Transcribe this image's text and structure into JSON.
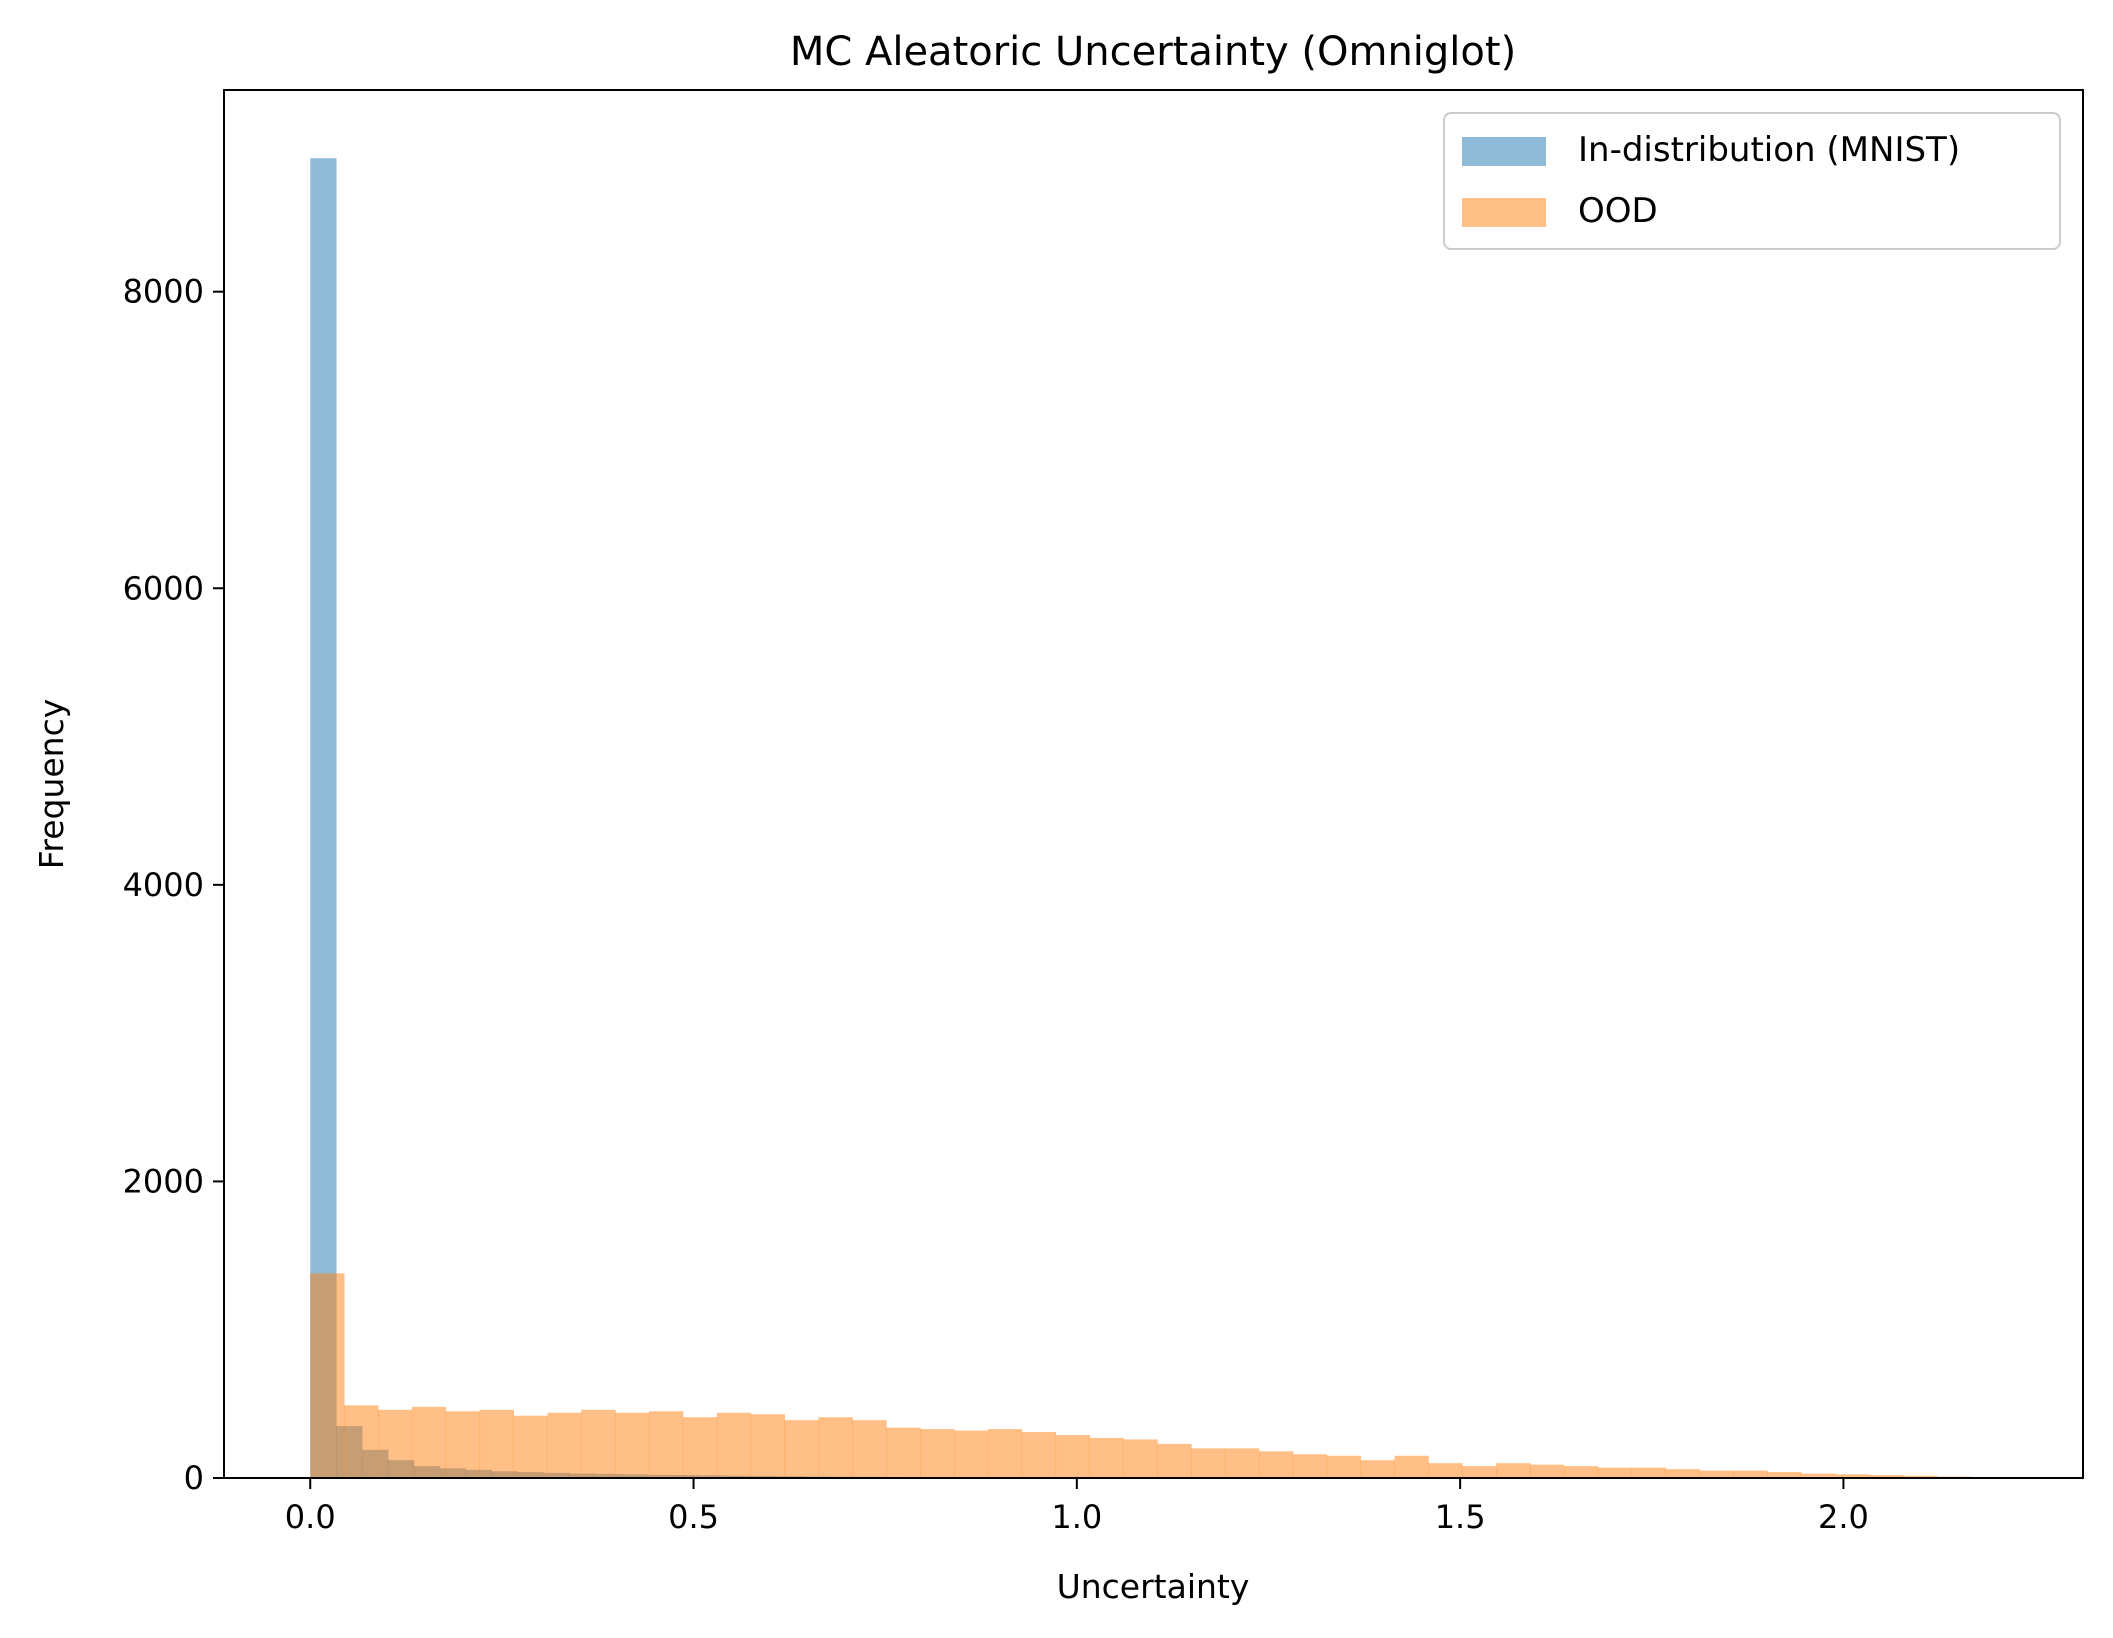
{
  "chart_data": {
    "type": "histogram",
    "title": "MC Aleatoric Uncertainty (Omniglot)",
    "xlabel": "Uncertainty",
    "ylabel": "Frequency",
    "xlim": [
      -0.1125,
      2.3125
    ],
    "ylim": [
      0,
      9360
    ],
    "xticks": [
      0.0,
      0.5,
      1.0,
      1.5,
      2.0
    ],
    "xtick_labels": [
      "0.0",
      "0.5",
      "1.0",
      "1.5",
      "2.0"
    ],
    "yticks": [
      0,
      2000,
      4000,
      6000,
      8000
    ],
    "ytick_labels": [
      "0",
      "2000",
      "4000",
      "6000",
      "8000"
    ],
    "legend_position": "top-right",
    "series": [
      {
        "name": "In-distribution (MNIST)",
        "color": "#1f77b4",
        "opacity": 0.5,
        "bin_start": 0.0,
        "bin_width": 0.0338,
        "values": [
          8900,
          350,
          190,
          120,
          80,
          65,
          55,
          45,
          40,
          35,
          30,
          28,
          25,
          22,
          20,
          18,
          16,
          14,
          12,
          10,
          9,
          8,
          7,
          6,
          5,
          5,
          4,
          4,
          3,
          3,
          3,
          2,
          2,
          2,
          2,
          1,
          1,
          1,
          1,
          1,
          1,
          1,
          1,
          1,
          1,
          1,
          1,
          1,
          1,
          1
        ]
      },
      {
        "name": "OOD",
        "color": "#ff7f0e",
        "opacity": 0.5,
        "bin_start": 0.0,
        "bin_width": 0.0442,
        "values": [
          1380,
          490,
          460,
          480,
          450,
          460,
          420,
          440,
          460,
          440,
          450,
          410,
          440,
          430,
          390,
          410,
          390,
          340,
          330,
          320,
          330,
          310,
          290,
          270,
          260,
          230,
          200,
          200,
          180,
          160,
          150,
          120,
          150,
          100,
          80,
          100,
          90,
          80,
          70,
          70,
          60,
          50,
          50,
          40,
          30,
          25,
          20,
          15,
          10,
          5
        ]
      }
    ]
  }
}
